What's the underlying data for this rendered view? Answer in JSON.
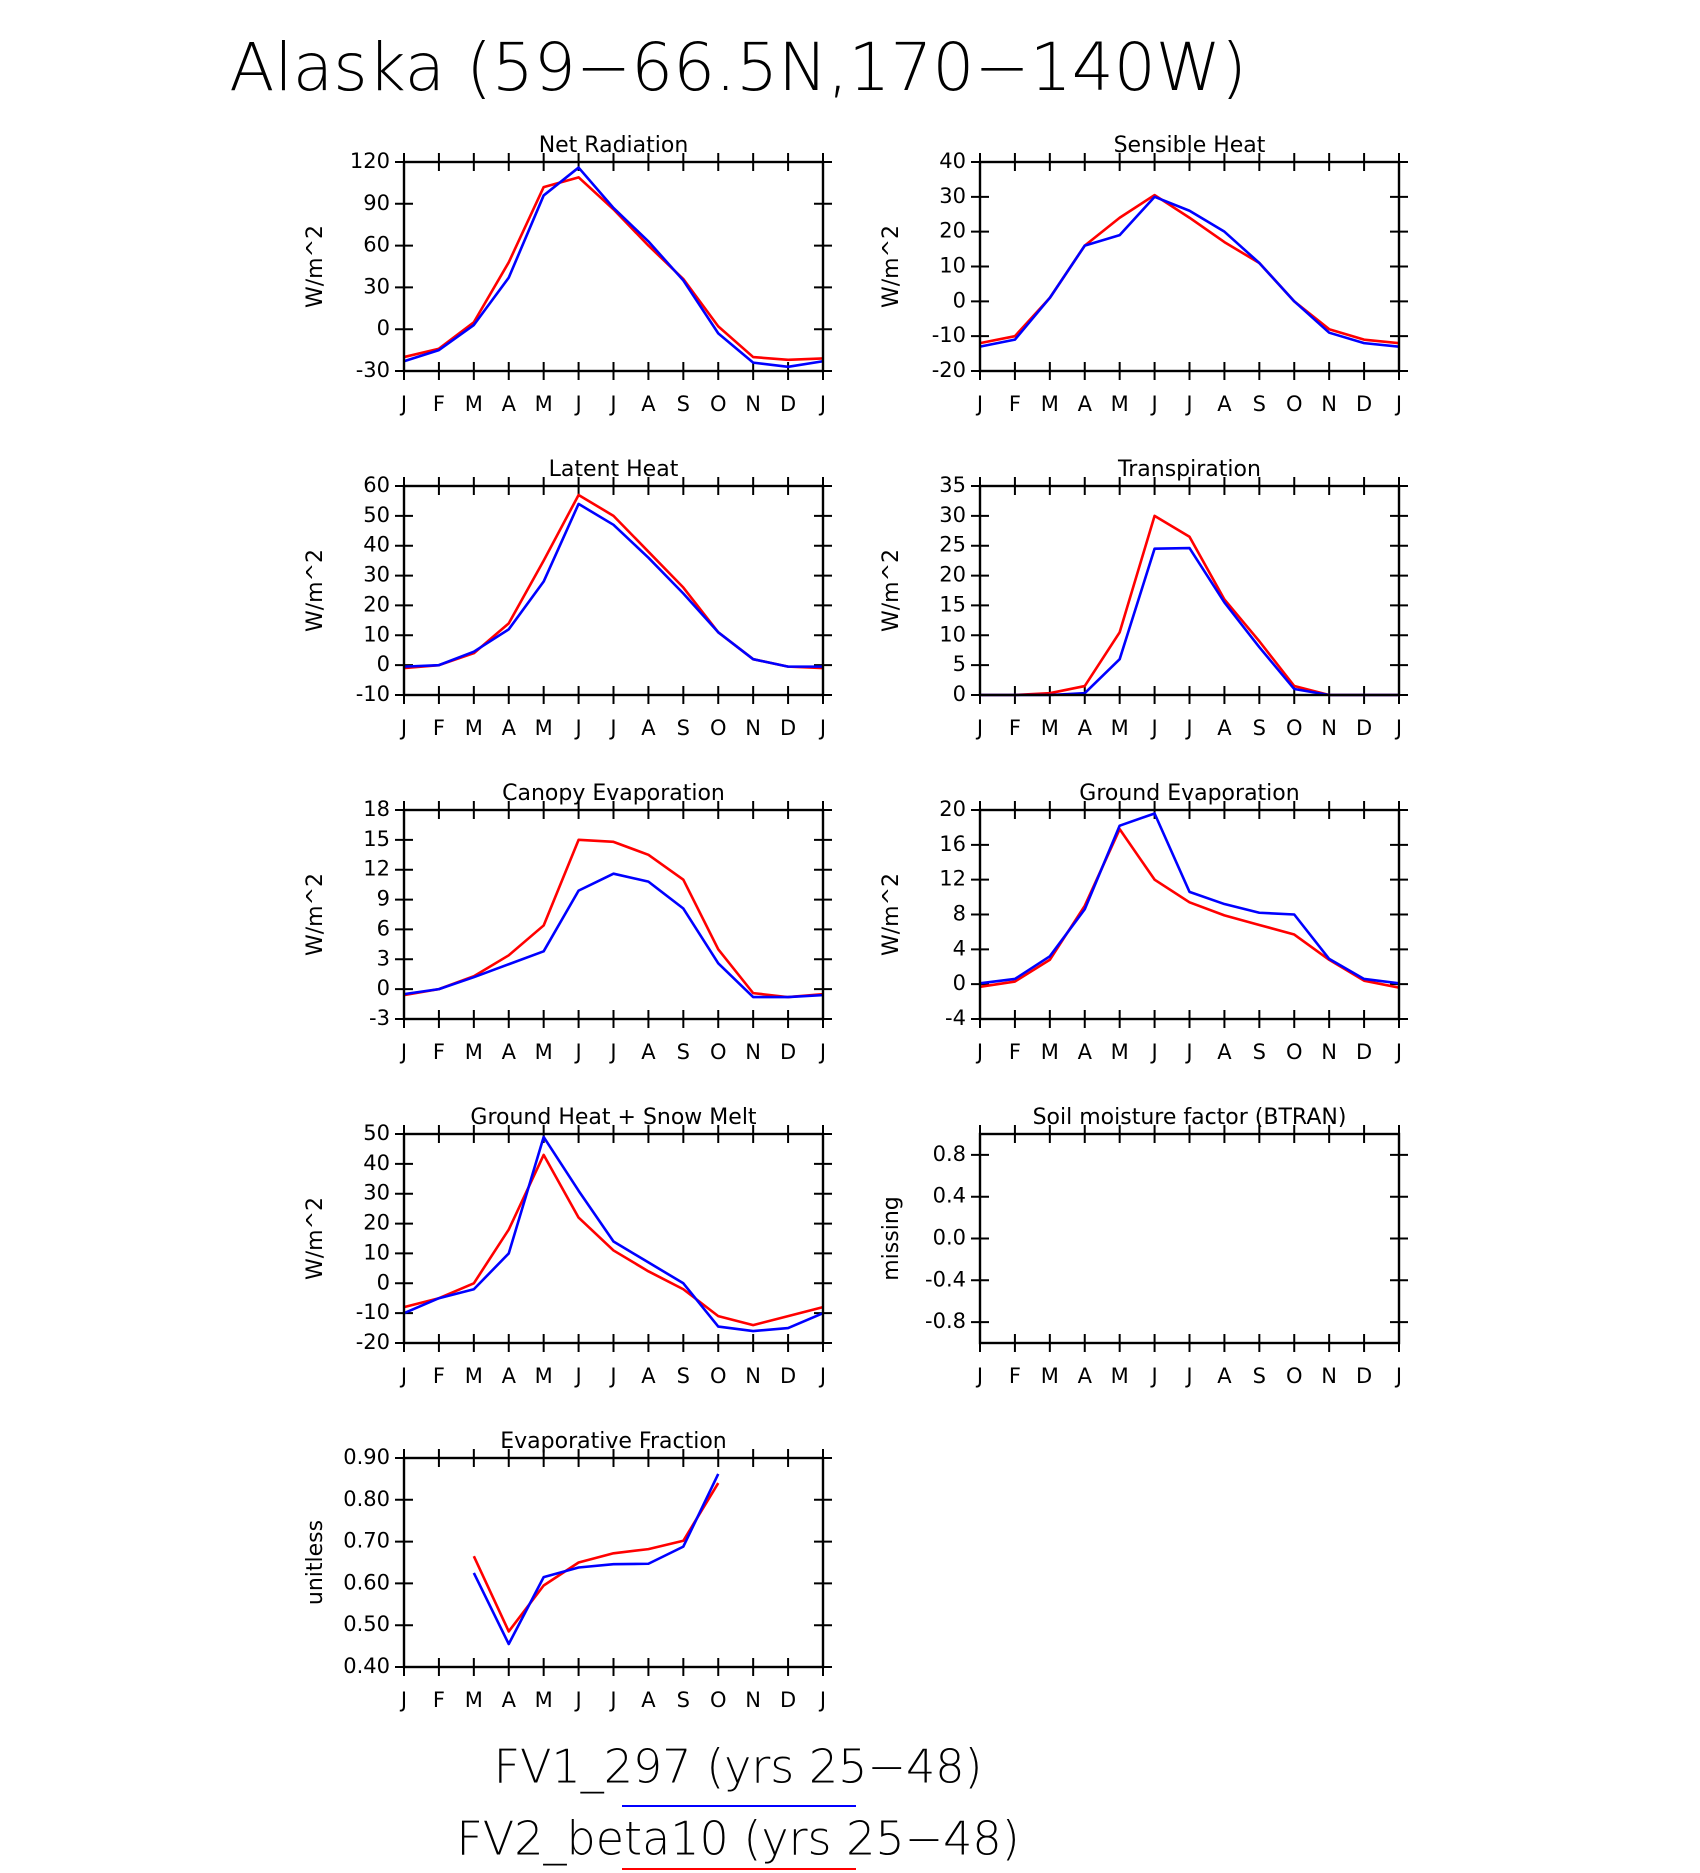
{
  "title": "Alaska (59−66.5N,170−140W)",
  "legend": [
    {
      "name": "FV1_297 (yrs 25−48)",
      "color": "#0000ff"
    },
    {
      "name": "FV2_beta10 (yrs 25−48)",
      "color": "#ff0000"
    }
  ],
  "chart_data": [
    {
      "type": "line",
      "title": "Net Radiation",
      "ylabel": "W/m^2",
      "categories": [
        "J",
        "F",
        "M",
        "A",
        "M",
        "J",
        "J",
        "A",
        "S",
        "O",
        "N",
        "D",
        "J"
      ],
      "ylim": [
        -30,
        120
      ],
      "yticks": [
        -30,
        0,
        30,
        60,
        90,
        120
      ],
      "series": [
        {
          "color": "#ff0000",
          "values": [
            -20,
            -14,
            5,
            48,
            102,
            109,
            86,
            60,
            36,
            2,
            -20,
            -22,
            -21
          ]
        },
        {
          "color": "#0000ff",
          "values": [
            -23,
            -15,
            3,
            37,
            96,
            116,
            87,
            63,
            35,
            -3,
            -24,
            -27,
            -23
          ]
        }
      ]
    },
    {
      "type": "line",
      "title": "Sensible Heat",
      "ylabel": "W/m^2",
      "categories": [
        "J",
        "F",
        "M",
        "A",
        "M",
        "J",
        "J",
        "A",
        "S",
        "O",
        "N",
        "D",
        "J"
      ],
      "ylim": [
        -20,
        40
      ],
      "yticks": [
        -20,
        -10,
        0,
        10,
        20,
        30,
        40
      ],
      "series": [
        {
          "color": "#ff0000",
          "values": [
            -12,
            -10,
            1,
            16,
            24,
            30.5,
            24,
            17,
            11,
            0,
            -8,
            -11,
            -12
          ]
        },
        {
          "color": "#0000ff",
          "values": [
            -13,
            -11,
            1,
            16,
            19,
            30,
            26,
            20,
            11,
            0,
            -9,
            -12,
            -13
          ]
        }
      ]
    },
    {
      "type": "line",
      "title": "Latent Heat",
      "ylabel": "W/m^2",
      "categories": [
        "J",
        "F",
        "M",
        "A",
        "M",
        "J",
        "J",
        "A",
        "S",
        "O",
        "N",
        "D",
        "J"
      ],
      "ylim": [
        -10,
        60
      ],
      "yticks": [
        -10,
        0,
        10,
        20,
        30,
        40,
        50,
        60
      ],
      "series": [
        {
          "color": "#ff0000",
          "values": [
            -1,
            0,
            4,
            14,
            35,
            57,
            50,
            38,
            26,
            11,
            2,
            -0.5,
            -1
          ]
        },
        {
          "color": "#0000ff",
          "values": [
            -0.5,
            0,
            4.5,
            12,
            28,
            54,
            47,
            36,
            24,
            11,
            2,
            -0.5,
            -0.5
          ]
        }
      ]
    },
    {
      "type": "line",
      "title": "Transpiration",
      "ylabel": "W/m^2",
      "categories": [
        "J",
        "F",
        "M",
        "A",
        "M",
        "J",
        "J",
        "A",
        "S",
        "O",
        "N",
        "D",
        "J"
      ],
      "ylim": [
        0,
        35
      ],
      "yticks": [
        0,
        5,
        10,
        15,
        20,
        25,
        30,
        35
      ],
      "series": [
        {
          "color": "#ff0000",
          "values": [
            0,
            0,
            0.3,
            1.5,
            10.5,
            30,
            26.5,
            16,
            9,
            1.5,
            0,
            0,
            0
          ]
        },
        {
          "color": "#0000ff",
          "values": [
            0,
            0,
            0,
            0.3,
            6,
            24.5,
            24.6,
            15.5,
            8,
            1,
            0,
            0,
            0
          ]
        }
      ]
    },
    {
      "type": "line",
      "title": "Canopy Evaporation",
      "ylabel": "W/m^2",
      "categories": [
        "J",
        "F",
        "M",
        "A",
        "M",
        "J",
        "J",
        "A",
        "S",
        "O",
        "N",
        "D",
        "J"
      ],
      "ylim": [
        -3,
        18
      ],
      "yticks": [
        -3,
        0,
        3,
        6,
        9,
        12,
        15,
        18
      ],
      "series": [
        {
          "color": "#ff0000",
          "values": [
            -0.6,
            0,
            1.3,
            3.4,
            6.4,
            15,
            14.8,
            13.5,
            11,
            4,
            -0.4,
            -0.8,
            -0.5
          ]
        },
        {
          "color": "#0000ff",
          "values": [
            -0.5,
            0,
            1.2,
            2.5,
            3.8,
            9.9,
            11.6,
            10.8,
            8.1,
            2.6,
            -0.8,
            -0.8,
            -0.6
          ]
        }
      ]
    },
    {
      "type": "line",
      "title": "Ground Evaporation",
      "ylabel": "W/m^2",
      "categories": [
        "J",
        "F",
        "M",
        "A",
        "M",
        "J",
        "J",
        "A",
        "S",
        "O",
        "N",
        "D",
        "J"
      ],
      "ylim": [
        -4,
        20
      ],
      "yticks": [
        -4,
        0,
        4,
        8,
        12,
        16,
        20
      ],
      "series": [
        {
          "color": "#ff0000",
          "values": [
            -0.3,
            0.3,
            2.8,
            9,
            17.8,
            12,
            9.4,
            7.9,
            6.8,
            5.7,
            2.8,
            0.4,
            -0.4
          ]
        },
        {
          "color": "#0000ff",
          "values": [
            0.1,
            0.6,
            3.2,
            8.6,
            18.2,
            19.6,
            10.6,
            9.2,
            8.2,
            8,
            2.9,
            0.6,
            0.1
          ]
        }
      ]
    },
    {
      "type": "line",
      "title": "Ground Heat + Snow Melt",
      "ylabel": "W/m^2",
      "categories": [
        "J",
        "F",
        "M",
        "A",
        "M",
        "J",
        "J",
        "A",
        "S",
        "O",
        "N",
        "D",
        "J"
      ],
      "ylim": [
        -20,
        50
      ],
      "yticks": [
        -20,
        -10,
        0,
        10,
        20,
        30,
        40,
        50
      ],
      "series": [
        {
          "color": "#ff0000",
          "values": [
            -8,
            -5,
            0,
            18,
            43,
            22,
            11,
            4,
            -2,
            -11,
            -14,
            -11,
            -8
          ]
        },
        {
          "color": "#0000ff",
          "values": [
            -10,
            -5,
            -2,
            10,
            49,
            31,
            14,
            7,
            0,
            -14.5,
            -16,
            -15,
            -10
          ]
        }
      ]
    },
    {
      "type": "line",
      "title": "Soil moisture factor (BTRAN)",
      "ylabel": "missing",
      "categories": [
        "J",
        "F",
        "M",
        "A",
        "M",
        "J",
        "J",
        "A",
        "S",
        "O",
        "N",
        "D",
        "J"
      ],
      "ylim": [
        -1,
        1
      ],
      "yticks": [
        -0.8,
        -0.4,
        {
          "value": 0,
          "label": "0.0"
        },
        0.4,
        0.8
      ],
      "series": []
    },
    {
      "type": "line",
      "title": "Evaporative Fraction",
      "ylabel": "unitless",
      "categories": [
        "J",
        "F",
        "M",
        "A",
        "M",
        "J",
        "J",
        "A",
        "S",
        "O",
        "N",
        "D",
        "J"
      ],
      "ylim": [
        0.4,
        0.9
      ],
      "yticks": [
        {
          "value": 0.4,
          "label": "0.40"
        },
        {
          "value": 0.5,
          "label": "0.50"
        },
        {
          "value": 0.6,
          "label": "0.60"
        },
        {
          "value": 0.7,
          "label": "0.70"
        },
        {
          "value": 0.8,
          "label": "0.80"
        },
        {
          "value": 0.9,
          "label": "0.90"
        }
      ],
      "series": [
        {
          "color": "#ff0000",
          "values": [
            null,
            null,
            0.665,
            0.485,
            0.595,
            0.65,
            0.672,
            0.682,
            0.702,
            0.84,
            null,
            null,
            null
          ]
        },
        {
          "color": "#0000ff",
          "values": [
            null,
            null,
            0.625,
            0.455,
            0.615,
            0.638,
            0.646,
            0.647,
            0.688,
            0.862,
            null,
            null,
            null
          ]
        }
      ]
    }
  ]
}
